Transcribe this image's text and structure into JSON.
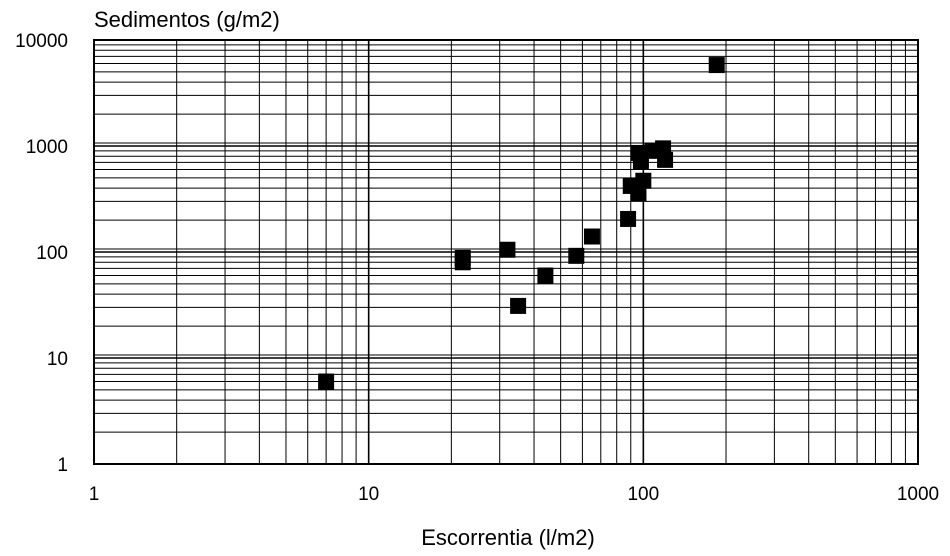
{
  "chart_data": {
    "type": "scatter",
    "xlabel": "Escorrentia (l/m2)",
    "ylabel": "Sedimentos (g/m2)",
    "x_scale": "log",
    "y_scale": "log",
    "xlim": [
      1,
      1000
    ],
    "ylim": [
      1,
      10000
    ],
    "x_ticks": [
      "1",
      "10",
      "100",
      "1000"
    ],
    "y_ticks": [
      "1",
      "10",
      "100",
      "1000",
      "10000"
    ],
    "grid": true,
    "marker": "square",
    "marker_color": "#000000",
    "points": [
      {
        "x": 7,
        "y": 6
      },
      {
        "x": 22,
        "y": 80
      },
      {
        "x": 22,
        "y": 88
      },
      {
        "x": 32,
        "y": 105
      },
      {
        "x": 35,
        "y": 31
      },
      {
        "x": 44,
        "y": 60
      },
      {
        "x": 57,
        "y": 92
      },
      {
        "x": 65,
        "y": 140
      },
      {
        "x": 88,
        "y": 205
      },
      {
        "x": 90,
        "y": 420
      },
      {
        "x": 96,
        "y": 860
      },
      {
        "x": 96,
        "y": 360
      },
      {
        "x": 98,
        "y": 720
      },
      {
        "x": 100,
        "y": 470
      },
      {
        "x": 108,
        "y": 900
      },
      {
        "x": 118,
        "y": 950
      },
      {
        "x": 120,
        "y": 740
      },
      {
        "x": 185,
        "y": 5800
      }
    ]
  }
}
